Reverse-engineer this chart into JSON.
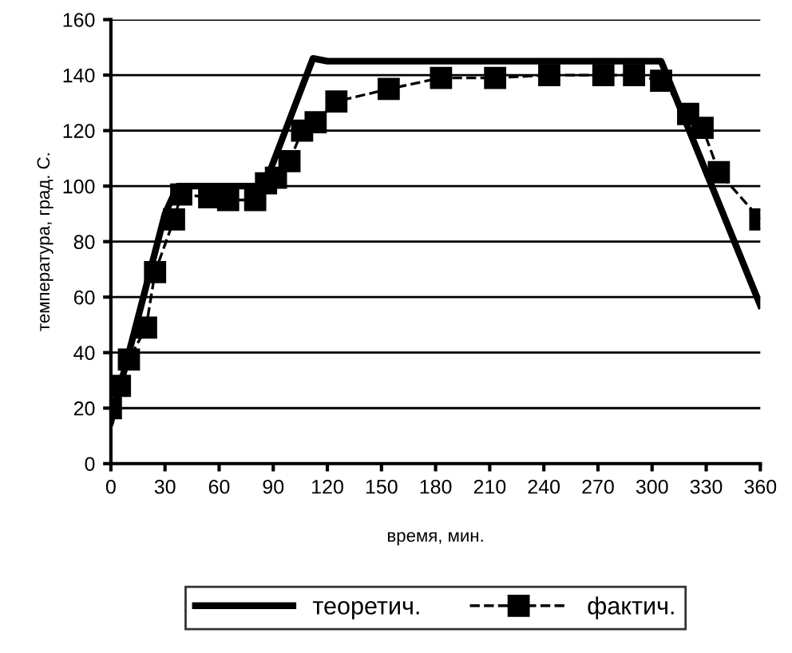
{
  "chart_data": {
    "type": "line",
    "xlabel": "время, мин.",
    "ylabel": "температура, град. С.",
    "xlim": [
      0,
      360
    ],
    "xticks": [
      0,
      30,
      60,
      90,
      120,
      150,
      180,
      210,
      240,
      270,
      300,
      330,
      360
    ],
    "ylim": [
      0,
      160
    ],
    "yticks": [
      0,
      20,
      40,
      60,
      80,
      100,
      120,
      140,
      160
    ],
    "grid": "y",
    "legend": "bottom",
    "series": [
      {
        "name": "теоретич.",
        "color": "#000000",
        "line_style": "solid",
        "marker": "none",
        "x": [
          0,
          10,
          30,
          37,
          85,
          112,
          120,
          305,
          360
        ],
        "values": [
          15,
          40,
          90,
          100,
          100,
          146,
          145,
          145,
          57
        ]
      },
      {
        "name": "фактич.",
        "color": "#000000",
        "line_style": "dashed",
        "marker": "square",
        "x": [
          0,
          5,
          10,
          19.5,
          24.5,
          35,
          39,
          54.5,
          65,
          80,
          86,
          91.5,
          99,
          106,
          113.5,
          125,
          154,
          183,
          213,
          243,
          273,
          290,
          305,
          320,
          328,
          337,
          360
        ],
        "values": [
          20,
          28,
          37.5,
          49,
          69,
          88,
          97,
          96,
          95,
          95,
          101,
          103,
          109,
          120,
          123,
          130.5,
          135,
          139,
          139,
          140,
          140,
          140,
          138,
          126,
          121,
          105,
          88
        ]
      }
    ]
  }
}
